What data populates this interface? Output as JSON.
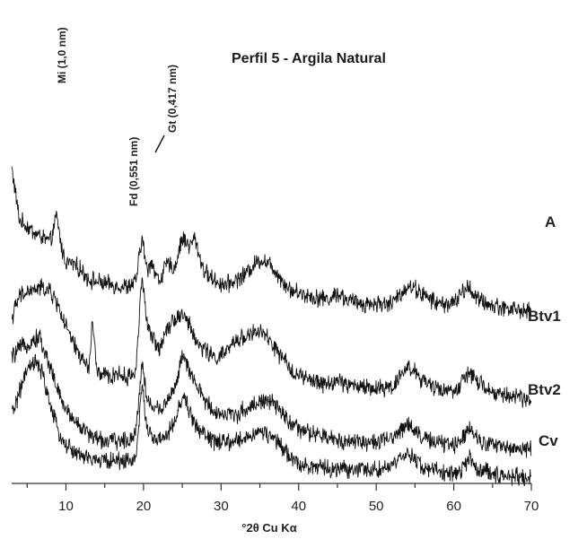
{
  "chart_data": {
    "type": "line",
    "title": "Perfil 5  - Argila Natural",
    "xlabel": "°2θ Cu Kα",
    "ylabel": "",
    "xlim": [
      3,
      70
    ],
    "xticks": [
      10,
      20,
      30,
      40,
      50,
      60,
      70
    ],
    "grid": false,
    "legend": "series labels at right end of each trace",
    "annotations": [
      {
        "text": "Mi (1,0 nm)",
        "x": 8.8
      },
      {
        "text": "Fd (0,551 nm)",
        "x": 16.1
      },
      {
        "text": "Gt (0,417 nm)",
        "x": 21.3
      }
    ],
    "series": [
      {
        "name": "A",
        "color": "#111111",
        "x": [
          3,
          4,
          5,
          6,
          7,
          8,
          8.8,
          9.5,
          10,
          11,
          12,
          13,
          14,
          15,
          16,
          17,
          18,
          19,
          19.8,
          20.5,
          21,
          21.5,
          22,
          23,
          24,
          25,
          25.5,
          26,
          26.6,
          27.5,
          28,
          29,
          30,
          31,
          32,
          33,
          34,
          35,
          36,
          37,
          38,
          39,
          40,
          42,
          44,
          45,
          46,
          48,
          50,
          52,
          54,
          55,
          56,
          58,
          60,
          61,
          62,
          63,
          65,
          67,
          70
        ],
        "y": [
          16,
          4,
          2.5,
          1,
          0,
          -1,
          5,
          -3,
          -5.5,
          -6,
          -7.5,
          -9.5,
          -10,
          -10.5,
          -10.8,
          -11,
          -11.2,
          -10,
          0,
          -8,
          -5,
          -8,
          -10,
          -6,
          -7,
          0,
          -1,
          -2,
          0,
          -6,
          -8,
          -9.5,
          -10.5,
          -10.5,
          -9.5,
          -8.5,
          -6.5,
          -5,
          -5.5,
          -7.5,
          -10,
          -12,
          -12.5,
          -13.5,
          -14,
          -12.5,
          -14,
          -15,
          -15,
          -15,
          -11,
          -11.5,
          -13,
          -15,
          -15,
          -12.5,
          -11.2,
          -14,
          -15.5,
          -16,
          -17
        ]
      },
      {
        "name": "Btv1",
        "color": "#111111",
        "x": [
          3,
          4,
          5,
          6,
          7,
          8,
          9,
          10,
          11,
          12,
          13,
          13.4,
          14,
          15,
          16,
          16.6,
          17,
          18,
          19,
          19.8,
          20.5,
          21,
          22,
          23,
          24,
          25,
          25.5,
          26,
          27,
          28,
          29,
          30,
          31,
          32,
          33,
          34,
          35,
          36,
          37,
          38,
          39,
          40,
          42,
          44,
          45,
          46,
          48,
          50,
          52,
          54,
          55,
          56,
          58,
          60,
          61,
          62,
          63,
          65,
          67,
          70
        ],
        "y": [
          0,
          5,
          6,
          6.5,
          7,
          6,
          3,
          -2,
          -6,
          -9,
          -11.5,
          0,
          -12.5,
          -13,
          -13.5,
          -12,
          -13,
          -13.5,
          -12,
          10,
          -2,
          -4,
          -7,
          -2,
          0,
          1,
          0,
          -2,
          -6,
          -7,
          -9,
          -8.5,
          -7,
          -5,
          -4,
          -3.5,
          -3,
          -4.5,
          -7,
          -9.5,
          -11.5,
          -13,
          -14.5,
          -15,
          -14,
          -15,
          -15.5,
          -16,
          -15.5,
          -11,
          -12,
          -14.5,
          -16,
          -16.5,
          -15,
          -12,
          -14.5,
          -17,
          -17.5,
          -18.5
        ]
      },
      {
        "name": "Btv2",
        "color": "#111111",
        "x": [
          3,
          4,
          5,
          6,
          6.6,
          7,
          8,
          9,
          10,
          11,
          12,
          13,
          14,
          15,
          16,
          17,
          18,
          19,
          19.8,
          20.5,
          21,
          22,
          23,
          24,
          25,
          25.5,
          26,
          27,
          28,
          29,
          30,
          31,
          32,
          33,
          34,
          35,
          36,
          37,
          38,
          39,
          40,
          42,
          44,
          46,
          48,
          50,
          52,
          54,
          55,
          56,
          58,
          60,
          61,
          62,
          63,
          65,
          67,
          70
        ],
        "y": [
          4,
          6,
          7,
          8,
          9,
          6,
          2,
          -4,
          -8,
          -10,
          -12,
          -13.5,
          -14.5,
          -15,
          -15,
          -15,
          -15,
          -13,
          3,
          -6,
          -7,
          -8,
          -6,
          -3,
          4,
          3,
          0,
          -3,
          -6,
          -8,
          -9,
          -9,
          -9,
          -8,
          -7,
          -6,
          -6,
          -7,
          -9,
          -11,
          -12.5,
          -13.5,
          -14.5,
          -15,
          -15,
          -15.5,
          -14.5,
          -11,
          -12.5,
          -14.5,
          -15.5,
          -16,
          -14.5,
          -11.5,
          -14.5,
          -16,
          -16.5,
          -17
        ]
      },
      {
        "name": "Cv",
        "color": "#111111",
        "x": [
          3,
          4,
          5,
          6,
          7,
          8,
          9,
          10,
          11,
          12,
          13,
          14,
          15,
          16,
          17,
          18,
          19,
          19.8,
          20.5,
          21,
          22,
          23,
          24,
          25,
          25.5,
          26,
          27,
          28,
          29,
          30,
          31,
          32,
          33,
          34,
          35,
          36,
          37,
          38,
          39,
          40,
          42,
          44,
          46,
          48,
          50,
          52,
          54,
          55,
          56,
          58,
          60,
          61,
          62,
          63,
          65,
          67,
          70
        ],
        "y": [
          0,
          5,
          10,
          12,
          9,
          2,
          -4,
          -7,
          -8.5,
          -9.5,
          -10,
          -10.5,
          -10.5,
          -10.5,
          -10.5,
          -10.5,
          -10,
          6,
          -3,
          -5,
          -6,
          -5,
          -2,
          4,
          3,
          0,
          -3,
          -5,
          -6,
          -6.5,
          -6.5,
          -6,
          -5.5,
          -4.5,
          -4,
          -4.5,
          -6,
          -8,
          -10,
          -11,
          -12,
          -12.5,
          -12.5,
          -12.5,
          -12.5,
          -12,
          -9,
          -10,
          -12,
          -13,
          -13.5,
          -12.5,
          -10,
          -12.5,
          -13.5,
          -14,
          -14.5
        ]
      }
    ]
  }
}
